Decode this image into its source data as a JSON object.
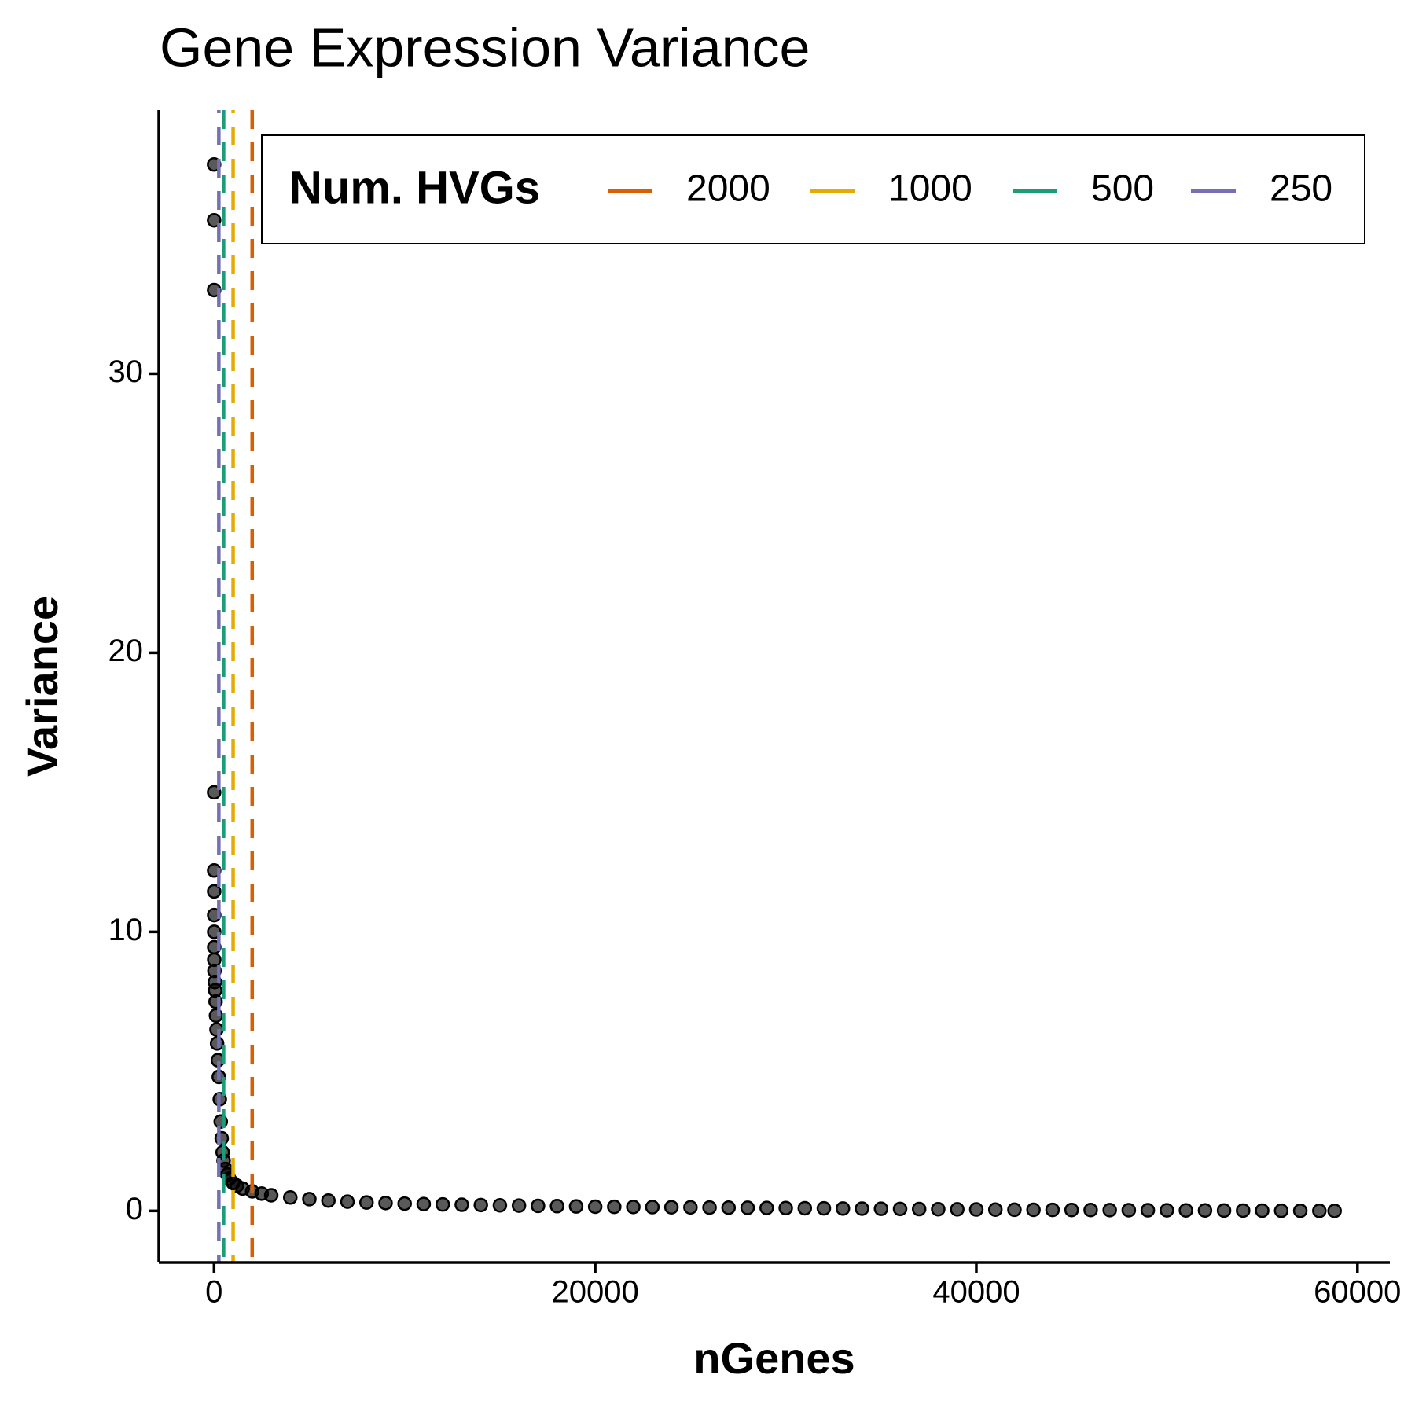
{
  "chart_data": {
    "type": "scatter",
    "title": "Gene Expression Variance",
    "x_label": "nGenes",
    "y_label": "Variance",
    "xlim": [
      -2900,
      61700
    ],
    "ylim": [
      -1.85,
      39.45
    ],
    "xticks": [
      0,
      20000,
      40000,
      60000
    ],
    "yticks": [
      0,
      10,
      20,
      30
    ],
    "grid": false,
    "point_color": "#000000",
    "legend_title": "Num. HVGs",
    "legend_position": "top-right",
    "vlines": [
      {
        "name": "2000",
        "color": "#D95F02",
        "x": 2000
      },
      {
        "name": "1000",
        "color": "#E6AB02",
        "x": 1000
      },
      {
        "name": "500",
        "color": "#1B9E77",
        "x": 500
      },
      {
        "name": "250",
        "color": "#7570B3",
        "x": 250
      }
    ],
    "x": [
      1,
      2,
      3,
      4,
      5,
      6,
      7,
      8,
      9,
      10,
      20,
      40,
      60,
      80,
      100,
      130,
      160,
      200,
      250,
      300,
      350,
      400,
      450,
      500,
      600,
      700,
      800,
      1000,
      1200,
      1500,
      2000,
      2500,
      3000,
      4000,
      5000,
      6000,
      7000,
      8000,
      9000,
      10000,
      11000,
      12000,
      13000,
      14000,
      15000,
      16000,
      17000,
      18000,
      19000,
      20000,
      21000,
      22000,
      23000,
      24000,
      25000,
      26000,
      27000,
      28000,
      29000,
      30000,
      31000,
      32000,
      33000,
      34000,
      35000,
      36000,
      37000,
      38000,
      39000,
      40000,
      41000,
      42000,
      43000,
      44000,
      45000,
      46000,
      47000,
      48000,
      49000,
      50000,
      51000,
      52000,
      53000,
      54000,
      55000,
      56000,
      57000,
      58000,
      58800
    ],
    "values": [
      37.5,
      35.5,
      33.0,
      15.0,
      12.2,
      11.45,
      10.6,
      10.0,
      9.45,
      9.0,
      8.6,
      8.2,
      7.9,
      7.5,
      7.0,
      6.5,
      6.0,
      5.4,
      4.8,
      4.0,
      3.2,
      2.6,
      2.1,
      1.8,
      1.5,
      1.3,
      1.15,
      1.0,
      0.9,
      0.8,
      0.7,
      0.62,
      0.56,
      0.48,
      0.42,
      0.37,
      0.33,
      0.3,
      0.28,
      0.26,
      0.245,
      0.23,
      0.22,
      0.21,
      0.2,
      0.19,
      0.18,
      0.17,
      0.16,
      0.15,
      0.145,
      0.14,
      0.135,
      0.13,
      0.125,
      0.12,
      0.115,
      0.11,
      0.105,
      0.1,
      0.095,
      0.09,
      0.085,
      0.08,
      0.075,
      0.07,
      0.065,
      0.06,
      0.055,
      0.05,
      0.045,
      0.04,
      0.038,
      0.035,
      0.032,
      0.03,
      0.028,
      0.025,
      0.022,
      0.02,
      0.018,
      0.015,
      0.012,
      0.01,
      0.008,
      0.005,
      0.003,
      0.001,
      0
    ]
  }
}
